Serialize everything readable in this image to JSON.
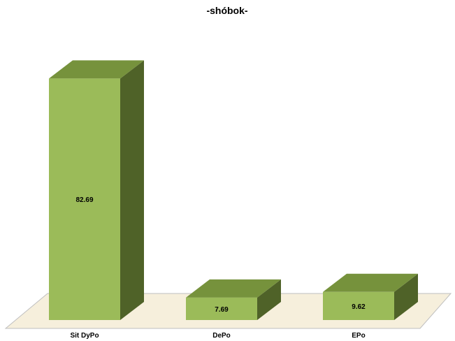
{
  "chart_data": {
    "type": "bar",
    "title": "-shóbok-",
    "xlabel": "",
    "ylabel": "",
    "categories": [
      "Sit DyPo",
      "DePo",
      "EPo"
    ],
    "values": [
      82.69,
      7.69,
      9.62
    ],
    "data_labels": [
      "82.69",
      "7.69",
      "9.62"
    ],
    "ylim": [
      0,
      100
    ],
    "grid": false,
    "legend": "none",
    "three_d": true,
    "colors": {
      "front": "#9BBB59",
      "side": "#4F6228",
      "top": "#76923C",
      "floor": "#F6EFDC",
      "floor_edge": "#BFBFBF"
    }
  }
}
